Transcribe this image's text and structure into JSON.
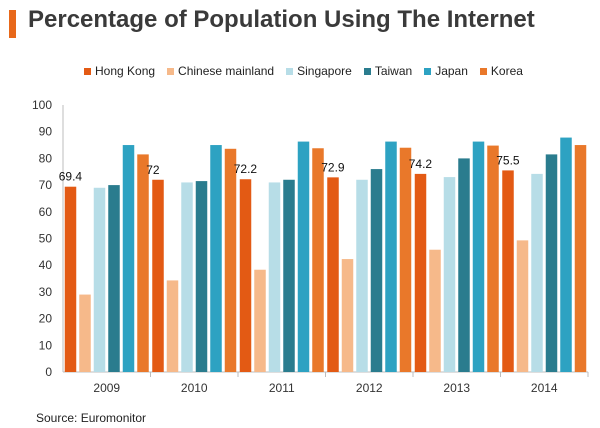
{
  "colors": {
    "title_accent": "#e8681a",
    "series": [
      "#e35a14",
      "#f6b98a",
      "#b7dde7",
      "#2a7c8e",
      "#2da2c2",
      "#e9782a"
    ]
  },
  "chart_data": {
    "type": "bar",
    "title": "Percentage of Population Using The Internet",
    "source": "Source: Euromonitor",
    "categories": [
      "2009",
      "2010",
      "2011",
      "2012",
      "2013",
      "2014"
    ],
    "ylim": [
      0,
      100
    ],
    "yticks": [
      "0",
      "10",
      "20",
      "30",
      "40",
      "50",
      "60",
      "70",
      "80",
      "90",
      "100"
    ],
    "grid": false,
    "legend_position": "top",
    "series": [
      {
        "name": "Hong Kong",
        "values": [
          69.4,
          72,
          72.2,
          72.9,
          74.2,
          75.5
        ],
        "labels": [
          "69.4",
          "72",
          "72.2",
          "72.9",
          "74.2",
          "75.5"
        ]
      },
      {
        "name": "Chinese mainland",
        "values": [
          29,
          34.3,
          38.3,
          42.3,
          45.8,
          49.3
        ]
      },
      {
        "name": "Singapore",
        "values": [
          69,
          71,
          71,
          72,
          73,
          74.2
        ]
      },
      {
        "name": "Taiwan",
        "values": [
          70,
          71.5,
          72,
          76,
          80,
          81.5
        ]
      },
      {
        "name": "Japan",
        "values": [
          85,
          85,
          86.3,
          86.3,
          86.3,
          87.8
        ]
      },
      {
        "name": "Korea",
        "values": [
          81.5,
          83.6,
          83.8,
          84,
          84.8,
          85
        ]
      }
    ]
  }
}
